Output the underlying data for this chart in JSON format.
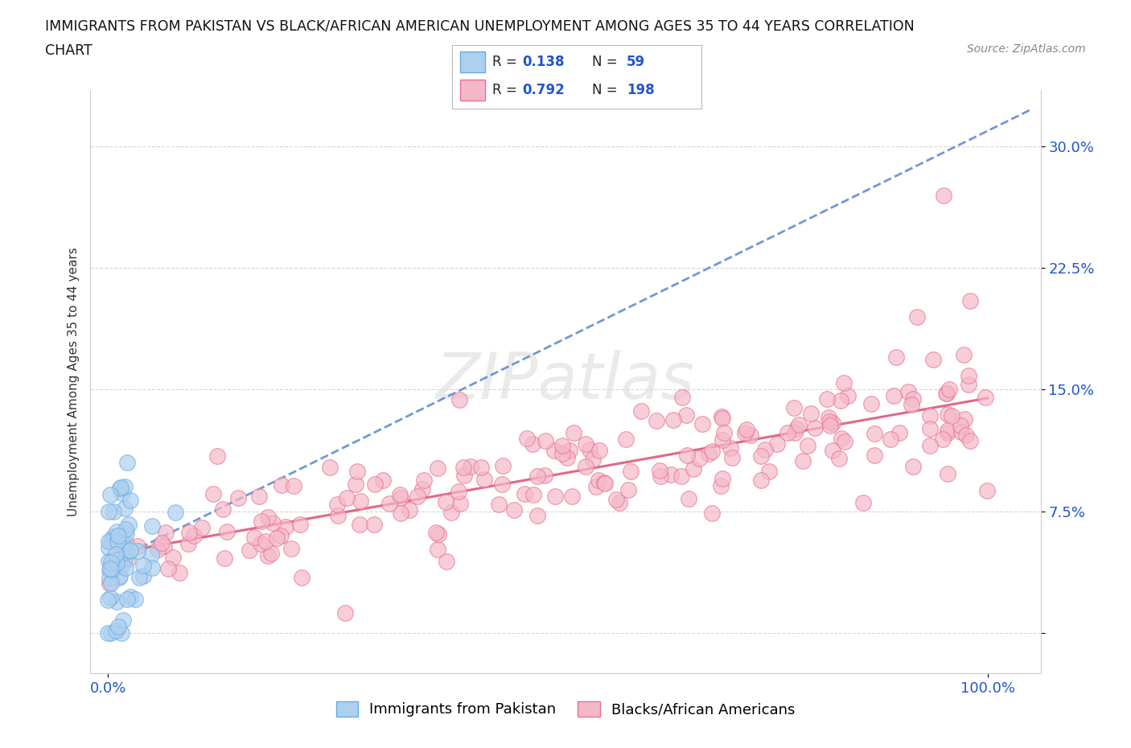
{
  "title_line1": "IMMIGRANTS FROM PAKISTAN VS BLACK/AFRICAN AMERICAN UNEMPLOYMENT AMONG AGES 35 TO 44 YEARS CORRELATION",
  "title_line2": "CHART",
  "source": "Source: ZipAtlas.com",
  "ylabel": "Unemployment Among Ages 35 to 44 years",
  "watermark": "ZIPatlas",
  "blue_color": "#ADD0F0",
  "blue_edge_color": "#6AAAE0",
  "pink_color": "#F5B8C8",
  "pink_edge_color": "#E87090",
  "blue_line_color": "#5588CC",
  "pink_line_color": "#E05878",
  "legend_R1": "0.138",
  "legend_N1": "59",
  "legend_R2": "0.792",
  "legend_N2": "198",
  "legend_label1": "Immigrants from Pakistan",
  "legend_label2": "Blacks/African Americans",
  "stat_color": "#2255CC",
  "label_color": "#222222",
  "tick_color": "#2255CC",
  "source_color": "#888888"
}
